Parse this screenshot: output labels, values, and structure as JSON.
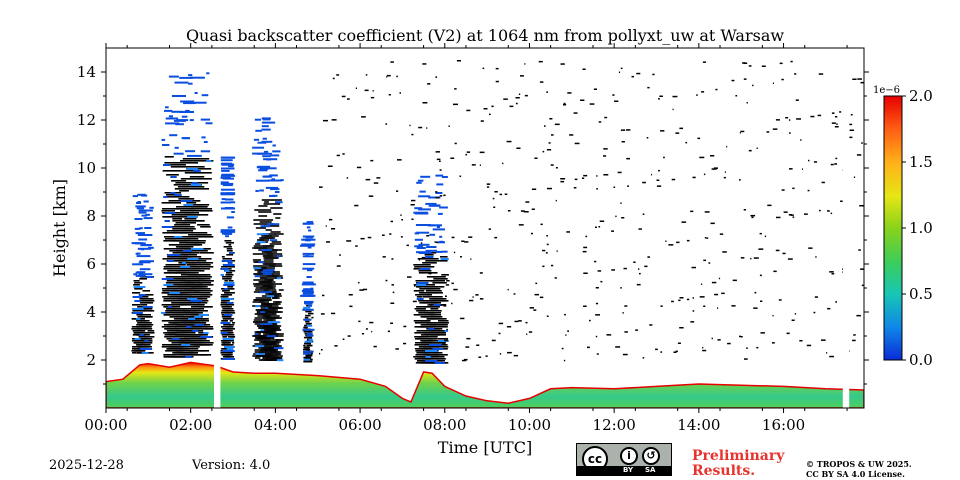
{
  "chart_data": {
    "type": "heatmap",
    "title": "Quasi backscatter coefficient (V2) at 1064 nm from pollyxt_uw at Warsaw",
    "xlabel": "Time [UTC]",
    "ylabel": "Height [km]",
    "xlim_hours": [
      0,
      17.9
    ],
    "ylim_km": [
      0,
      15
    ],
    "x_ticks": [
      {
        "value": 0,
        "label": "00:00"
      },
      {
        "value": 2,
        "label": "02:00"
      },
      {
        "value": 4,
        "label": "04:00"
      },
      {
        "value": 6,
        "label": "06:00"
      },
      {
        "value": 8,
        "label": "08:00"
      },
      {
        "value": 10,
        "label": "10:00"
      },
      {
        "value": 12,
        "label": "12:00"
      },
      {
        "value": 14,
        "label": "14:00"
      },
      {
        "value": 16,
        "label": "16:00"
      }
    ],
    "y_ticks": [
      {
        "value": 2,
        "label": "2"
      },
      {
        "value": 4,
        "label": "4"
      },
      {
        "value": 6,
        "label": "6"
      },
      {
        "value": 8,
        "label": "8"
      },
      {
        "value": 10,
        "label": "10"
      },
      {
        "value": 12,
        "label": "12"
      },
      {
        "value": 14,
        "label": "14"
      }
    ],
    "colorbar": {
      "scale_label": "1e−6",
      "min": 0.0,
      "max": 2.0,
      "ticks": [
        {
          "value": 0.0,
          "label": "0.0"
        },
        {
          "value": 0.5,
          "label": "0.5"
        },
        {
          "value": 1.0,
          "label": "1.0"
        },
        {
          "value": 1.5,
          "label": "1.5"
        },
        {
          "value": 2.0,
          "label": "2.0"
        }
      ],
      "colors": [
        "#0a2bd6",
        "#0f85e8",
        "#18c6b6",
        "#3ccd5a",
        "#8ad21c",
        "#e6e614",
        "#ffb01a",
        "#ff5a14",
        "#e60000"
      ]
    },
    "boundary_layer_top_km": [
      [
        0.0,
        1.1
      ],
      [
        0.4,
        1.2
      ],
      [
        0.8,
        1.8
      ],
      [
        1.0,
        1.85
      ],
      [
        1.5,
        1.7
      ],
      [
        2.0,
        1.9
      ],
      [
        2.6,
        1.75
      ],
      [
        3.0,
        1.5
      ],
      [
        3.5,
        1.45
      ],
      [
        4.0,
        1.45
      ],
      [
        5.0,
        1.35
      ],
      [
        6.0,
        1.2
      ],
      [
        6.6,
        0.9
      ],
      [
        7.0,
        0.4
      ],
      [
        7.2,
        0.25
      ],
      [
        7.5,
        1.5
      ],
      [
        7.7,
        1.45
      ],
      [
        8.0,
        0.9
      ],
      [
        8.5,
        0.5
      ],
      [
        9.0,
        0.3
      ],
      [
        9.5,
        0.2
      ],
      [
        10.0,
        0.4
      ],
      [
        10.5,
        0.8
      ],
      [
        11.0,
        0.85
      ],
      [
        12.0,
        0.8
      ],
      [
        13.0,
        0.9
      ],
      [
        14.0,
        1.0
      ],
      [
        15.0,
        0.95
      ],
      [
        16.0,
        0.9
      ],
      [
        17.0,
        0.8
      ],
      [
        17.9,
        0.75
      ]
    ],
    "data_gaps_hours": [
      [
        2.55,
        2.7
      ],
      [
        17.4,
        17.55
      ]
    ],
    "cloud_columns": [
      {
        "t_start": 0.6,
        "t_end": 1.15,
        "base_km": 2.3,
        "top_km": 5.5
      },
      {
        "t_start": 1.3,
        "t_end": 2.55,
        "base_km": 2.1,
        "top_km": 10.5
      },
      {
        "t_start": 2.7,
        "t_end": 3.05,
        "base_km": 2.0,
        "top_km": 7.0
      },
      {
        "t_start": 3.45,
        "t_end": 4.2,
        "base_km": 1.95,
        "top_km": 8.7
      },
      {
        "t_start": 4.65,
        "t_end": 4.9,
        "base_km": 1.9,
        "top_km": 4.3
      },
      {
        "t_start": 7.25,
        "t_end": 8.1,
        "base_km": 1.9,
        "top_km": 6.5
      }
    ]
  },
  "footer": {
    "date": "2025-12-28",
    "version": "Version: 4.0",
    "preliminary_line1": "Preliminary",
    "preliminary_line2": "Results.",
    "copyright_line1": "© TROPOS & UW 2025.",
    "copyright_line2": "CC BY SA 4.0 License.",
    "license_badge": {
      "cc": "cc",
      "by": "BY",
      "sa": "SA"
    }
  }
}
